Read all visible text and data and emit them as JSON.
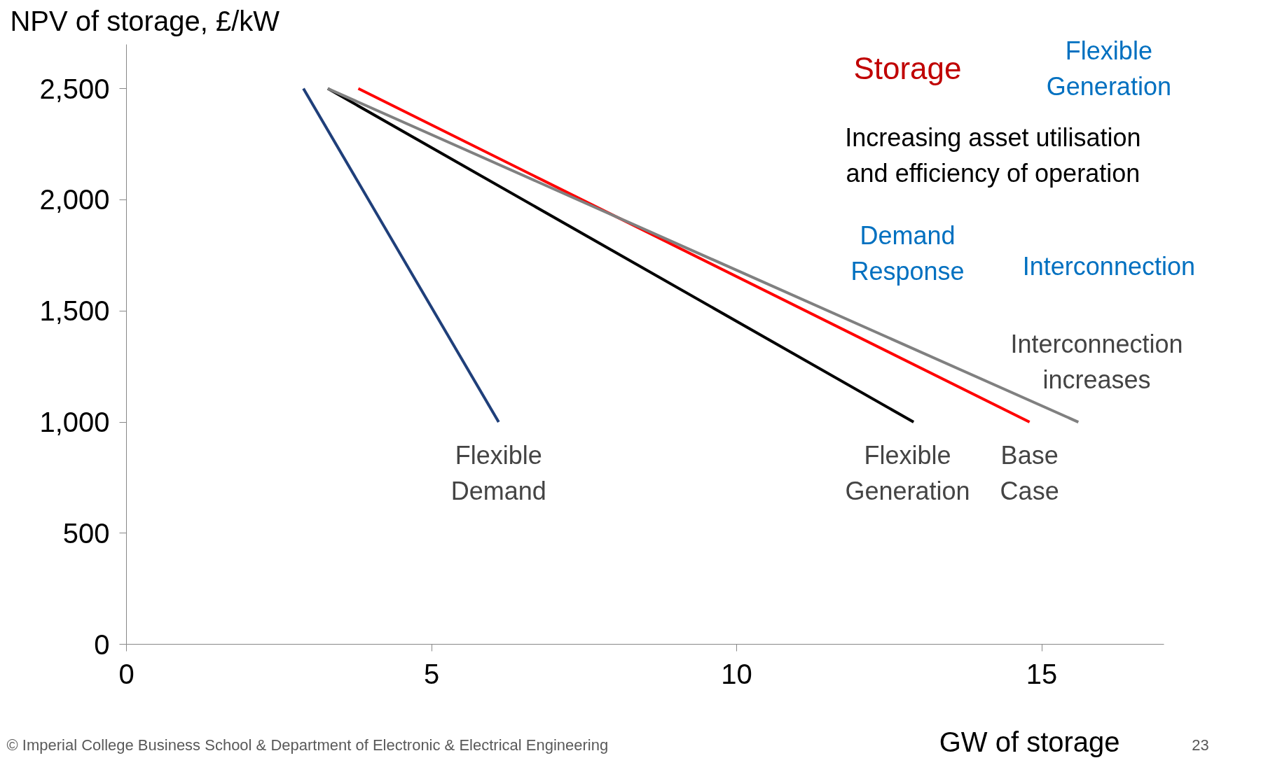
{
  "chart_data": {
    "type": "line",
    "xlabel": "GW of storage",
    "ylabel": "NPV of storage, £/kW",
    "series": [
      {
        "name": "Flexible Demand",
        "color": "#1f3f7a",
        "x": [
          2.9,
          6.1
        ],
        "values": [
          2500,
          1000
        ]
      },
      {
        "name": "Flexible Generation",
        "color": "#000000",
        "x": [
          3.3,
          12.9
        ],
        "values": [
          2500,
          1000
        ]
      },
      {
        "name": "Base Case",
        "color": "#ff0000",
        "x": [
          3.8,
          14.8
        ],
        "values": [
          2500,
          1000
        ]
      },
      {
        "name": "Interconnection increases",
        "color": "#808080",
        "x": [
          3.3,
          15.6
        ],
        "values": [
          2500,
          1000
        ]
      }
    ],
    "xlim": [
      0,
      17
    ],
    "ylim": [
      0,
      2700
    ],
    "xticks": [
      0,
      5,
      10,
      15
    ],
    "yticks": [
      0,
      500,
      {
        "value": 1000,
        "label": "1,000"
      },
      {
        "value": 1500,
        "label": "1,500"
      },
      {
        "value": 2000,
        "label": "2,000"
      },
      {
        "value": 2500,
        "label": "2,500"
      }
    ],
    "grid": false,
    "marker": "none",
    "line_style": "solid",
    "annotations": [
      "Storage",
      "Flexible Generation",
      "Increasing asset utilisation and efficiency of operation",
      "Demand Response",
      "Interconnection",
      "© Imperial College Business School & Department of Electronic & Electrical Engineering",
      "23"
    ]
  }
}
